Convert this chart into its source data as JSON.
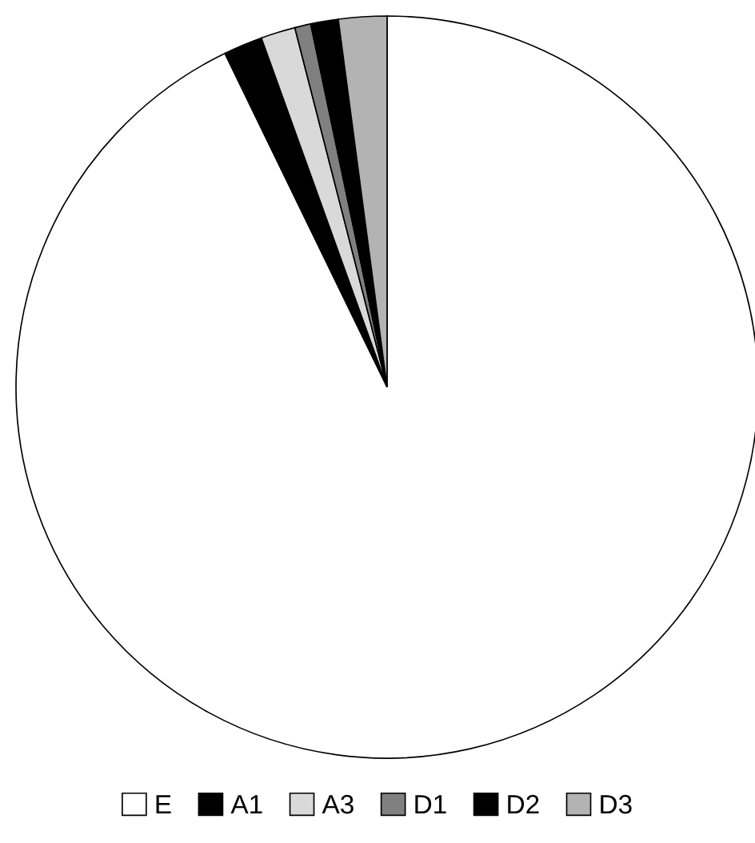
{
  "chart_data": {
    "type": "pie",
    "categories": [
      "E",
      "A1",
      "A3",
      "D1",
      "D2",
      "D3"
    ],
    "values": [
      92.8,
      1.7,
      1.5,
      0.7,
      1.2,
      2.1
    ],
    "colors": [
      "#ffffff",
      "#000000",
      "#d9d9d9",
      "#808080",
      "#000000",
      "#b3b3b3"
    ],
    "legend": "bottom"
  }
}
